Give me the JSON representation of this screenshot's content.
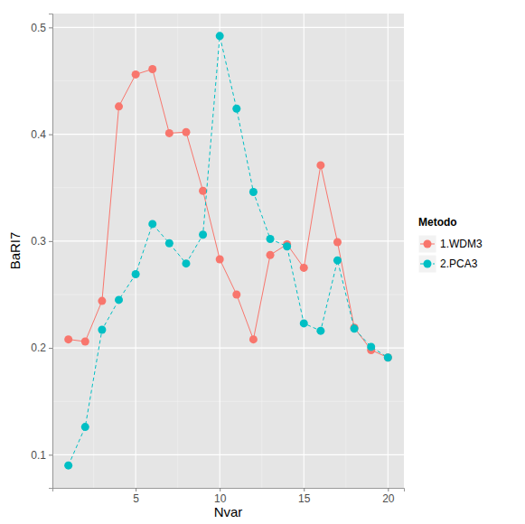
{
  "chart_data": {
    "type": "line",
    "x_label": "Nvar",
    "y_label": "BaRI7",
    "legend_title": "Metodo",
    "legend": "right",
    "grid": true,
    "x": [
      1,
      2,
      3,
      4,
      5,
      6,
      7,
      8,
      9,
      10,
      11,
      12,
      13,
      14,
      15,
      16,
      17,
      18,
      19,
      20
    ],
    "series": [
      {
        "name": "1.WDM3",
        "color": "#F8766D",
        "line_style": "solid",
        "marker": "circle",
        "values": [
          0.208,
          0.206,
          0.244,
          0.426,
          0.456,
          0.461,
          0.401,
          0.402,
          0.347,
          0.283,
          0.25,
          0.208,
          0.287,
          0.297,
          0.275,
          0.371,
          0.299,
          0.219,
          0.198,
          0.191
        ]
      },
      {
        "name": "2.PCA3",
        "color": "#00BFC4",
        "line_style": "dashed",
        "marker": "circle",
        "values": [
          0.09,
          0.126,
          0.217,
          0.245,
          0.269,
          0.316,
          0.298,
          0.279,
          0.306,
          0.492,
          0.424,
          0.346,
          0.302,
          0.295,
          0.223,
          0.216,
          0.282,
          0.218,
          0.201,
          0.191
        ]
      }
    ],
    "xlim": [
      0.05,
      20.95
    ],
    "ylim": [
      0.069,
      0.513
    ],
    "xticks": [
      5,
      10,
      15,
      20
    ],
    "yticks": [
      0.1,
      0.2,
      0.3,
      0.4,
      0.5
    ]
  }
}
